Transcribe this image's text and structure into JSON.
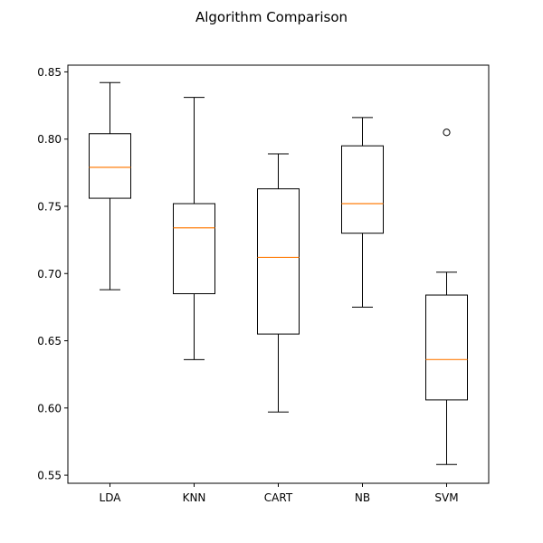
{
  "chart_data": {
    "type": "box",
    "title": "Algorithm Comparison",
    "xlabel": "",
    "ylabel": "",
    "ylim": [
      0.544,
      0.855
    ],
    "y_ticks": [
      0.55,
      0.6,
      0.65,
      0.7,
      0.75,
      0.8,
      0.85
    ],
    "y_tick_labels": [
      "0.55",
      "0.60",
      "0.65",
      "0.70",
      "0.75",
      "0.80",
      "0.85"
    ],
    "categories": [
      "LDA",
      "KNN",
      "CART",
      "NB",
      "SVM"
    ],
    "boxes": [
      {
        "category": "LDA",
        "whisker_low": 0.688,
        "q1": 0.756,
        "median": 0.779,
        "q3": 0.804,
        "whisker_high": 0.842,
        "outliers": []
      },
      {
        "category": "KNN",
        "whisker_low": 0.636,
        "q1": 0.685,
        "median": 0.734,
        "q3": 0.752,
        "whisker_high": 0.831,
        "outliers": []
      },
      {
        "category": "CART",
        "whisker_low": 0.597,
        "q1": 0.655,
        "median": 0.712,
        "q3": 0.763,
        "whisker_high": 0.789,
        "outliers": []
      },
      {
        "category": "NB",
        "whisker_low": 0.675,
        "q1": 0.73,
        "median": 0.752,
        "q3": 0.795,
        "whisker_high": 0.816,
        "outliers": []
      },
      {
        "category": "SVM",
        "whisker_low": 0.558,
        "q1": 0.606,
        "median": 0.636,
        "q3": 0.684,
        "whisker_high": 0.701,
        "outliers": [
          0.805
        ]
      }
    ],
    "colors": {
      "box": "#000000",
      "median": "#ff7f0e",
      "outlier": "#000000"
    },
    "grid": false,
    "legend": "none"
  }
}
